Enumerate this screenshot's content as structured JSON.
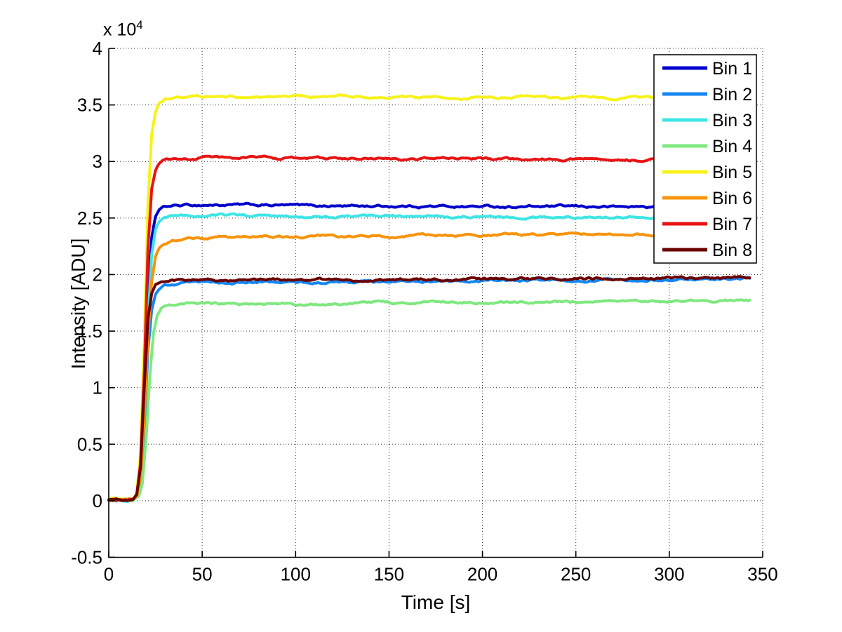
{
  "chart": {
    "xlabel": "Time [s]",
    "ylabel": "Intensity [ADU]",
    "exponent_base": "x 10",
    "exponent_power": "4"
  },
  "chart_data": {
    "type": "line",
    "title": "",
    "xlabel": "Time [s]",
    "ylabel": "Intensity [ADU]",
    "y_scale_note": "y tick labels are in units of 1e4 ADU (axis shows 'x 10^4')",
    "xlim": [
      0,
      350
    ],
    "ylim": [
      -5000,
      40000
    ],
    "x_ticks": [
      [
        0,
        "0"
      ],
      [
        50,
        "50"
      ],
      [
        100,
        "100"
      ],
      [
        150,
        "150"
      ],
      [
        200,
        "200"
      ],
      [
        250,
        "250"
      ],
      [
        300,
        "300"
      ],
      [
        350,
        "350"
      ]
    ],
    "y_ticks": [
      [
        -5000,
        "-0.5"
      ],
      [
        0,
        "0"
      ],
      [
        5000,
        "0.5"
      ],
      [
        10000,
        "1"
      ],
      [
        15000,
        "1.5"
      ],
      [
        20000,
        "2"
      ],
      [
        25000,
        "2.5"
      ],
      [
        30000,
        "3"
      ],
      [
        35000,
        "3.5"
      ],
      [
        40000,
        "4"
      ]
    ],
    "grid": true,
    "grid_style": "dotted",
    "legend_position": "top-right",
    "series": [
      {
        "name": "Bin 1",
        "color": "#0000CC",
        "points": [
          [
            0,
            100
          ],
          [
            10,
            110
          ],
          [
            13,
            140
          ],
          [
            15,
            500
          ],
          [
            17,
            2600
          ],
          [
            19,
            8800
          ],
          [
            21,
            17500
          ],
          [
            23,
            23200
          ],
          [
            25,
            25100
          ],
          [
            27,
            25700
          ],
          [
            30,
            25950
          ],
          [
            34,
            26060
          ],
          [
            40,
            26110
          ],
          [
            55,
            26160
          ],
          [
            80,
            26130
          ],
          [
            120,
            26080
          ],
          [
            160,
            26050
          ],
          [
            200,
            26020
          ],
          [
            250,
            26000
          ],
          [
            300,
            25990
          ],
          [
            343,
            25980
          ]
        ]
      },
      {
        "name": "Bin 2",
        "color": "#1486F0",
        "points": [
          [
            0,
            90
          ],
          [
            10,
            100
          ],
          [
            13,
            120
          ],
          [
            15,
            350
          ],
          [
            17,
            1800
          ],
          [
            19,
            6500
          ],
          [
            21,
            13500
          ],
          [
            23,
            16900
          ],
          [
            25,
            18200
          ],
          [
            27,
            18750
          ],
          [
            30,
            19050
          ],
          [
            34,
            19180
          ],
          [
            40,
            19240
          ],
          [
            60,
            19280
          ],
          [
            100,
            19310
          ],
          [
            150,
            19360
          ],
          [
            200,
            19440
          ],
          [
            250,
            19510
          ],
          [
            300,
            19560
          ],
          [
            343,
            19620
          ]
        ]
      },
      {
        "name": "Bin 3",
        "color": "#3FE5E5",
        "points": [
          [
            0,
            90
          ],
          [
            10,
            100
          ],
          [
            13,
            130
          ],
          [
            15,
            450
          ],
          [
            17,
            2300
          ],
          [
            19,
            8000
          ],
          [
            21,
            16000
          ],
          [
            23,
            21800
          ],
          [
            25,
            24000
          ],
          [
            27,
            24700
          ],
          [
            30,
            25000
          ],
          [
            34,
            25140
          ],
          [
            40,
            25200
          ],
          [
            60,
            25220
          ],
          [
            100,
            25160
          ],
          [
            150,
            25110
          ],
          [
            200,
            25080
          ],
          [
            250,
            25040
          ],
          [
            300,
            25000
          ],
          [
            343,
            24990
          ]
        ]
      },
      {
        "name": "Bin 4",
        "color": "#7FE87F",
        "points": [
          [
            0,
            80
          ],
          [
            10,
            90
          ],
          [
            14,
            110
          ],
          [
            16,
            300
          ],
          [
            18,
            1500
          ],
          [
            20,
            5500
          ],
          [
            22,
            11000
          ],
          [
            24,
            14800
          ],
          [
            26,
            16300
          ],
          [
            28,
            16900
          ],
          [
            31,
            17150
          ],
          [
            35,
            17300
          ],
          [
            42,
            17380
          ],
          [
            60,
            17420
          ],
          [
            100,
            17450
          ],
          [
            150,
            17500
          ],
          [
            200,
            17550
          ],
          [
            250,
            17600
          ],
          [
            300,
            17650
          ],
          [
            343,
            17690
          ]
        ]
      },
      {
        "name": "Bin 5",
        "color": "#F7F219",
        "points": [
          [
            0,
            110
          ],
          [
            10,
            120
          ],
          [
            13,
            160
          ],
          [
            15,
            700
          ],
          [
            17,
            4200
          ],
          [
            19,
            14000
          ],
          [
            21,
            26500
          ],
          [
            23,
            32500
          ],
          [
            25,
            34500
          ],
          [
            27,
            35200
          ],
          [
            30,
            35550
          ],
          [
            34,
            35700
          ],
          [
            40,
            35760
          ],
          [
            55,
            35790
          ],
          [
            90,
            35750
          ],
          [
            130,
            35730
          ],
          [
            170,
            35700
          ],
          [
            210,
            35690
          ],
          [
            250,
            35660
          ],
          [
            300,
            35610
          ],
          [
            343,
            35560
          ]
        ]
      },
      {
        "name": "Bin 6",
        "color": "#F7940D",
        "points": [
          [
            0,
            90
          ],
          [
            10,
            100
          ],
          [
            13,
            130
          ],
          [
            15,
            400
          ],
          [
            17,
            2100
          ],
          [
            19,
            7200
          ],
          [
            21,
            14500
          ],
          [
            23,
            19500
          ],
          [
            25,
            21600
          ],
          [
            27,
            22350
          ],
          [
            30,
            22750
          ],
          [
            34,
            22980
          ],
          [
            40,
            23120
          ],
          [
            55,
            23260
          ],
          [
            80,
            23350
          ],
          [
            110,
            23400
          ],
          [
            150,
            23430
          ],
          [
            190,
            23470
          ],
          [
            220,
            23540
          ],
          [
            250,
            23590
          ],
          [
            280,
            23530
          ],
          [
            310,
            23520
          ],
          [
            343,
            23530
          ]
        ]
      },
      {
        "name": "Bin 7",
        "color": "#E81414",
        "points": [
          [
            0,
            100
          ],
          [
            10,
            110
          ],
          [
            13,
            150
          ],
          [
            15,
            600
          ],
          [
            17,
            3400
          ],
          [
            19,
            11500
          ],
          [
            21,
            22500
          ],
          [
            23,
            27800
          ],
          [
            25,
            29400
          ],
          [
            27,
            29950
          ],
          [
            30,
            30180
          ],
          [
            34,
            30280
          ],
          [
            40,
            30320
          ],
          [
            60,
            30310
          ],
          [
            100,
            30280
          ],
          [
            150,
            30250
          ],
          [
            200,
            30210
          ],
          [
            250,
            30160
          ],
          [
            300,
            30110
          ],
          [
            343,
            30090
          ]
        ]
      },
      {
        "name": "Bin 8",
        "color": "#6B0000",
        "points": [
          [
            0,
            90
          ],
          [
            10,
            100
          ],
          [
            13,
            130
          ],
          [
            15,
            550
          ],
          [
            17,
            3000
          ],
          [
            19,
            10000
          ],
          [
            21,
            16200
          ],
          [
            23,
            18400
          ],
          [
            25,
            19100
          ],
          [
            27,
            19330
          ],
          [
            30,
            19420
          ],
          [
            34,
            19460
          ],
          [
            40,
            19480
          ],
          [
            60,
            19490
          ],
          [
            100,
            19510
          ],
          [
            150,
            19560
          ],
          [
            200,
            19610
          ],
          [
            250,
            19650
          ],
          [
            300,
            19680
          ],
          [
            343,
            19710
          ]
        ]
      }
    ]
  }
}
